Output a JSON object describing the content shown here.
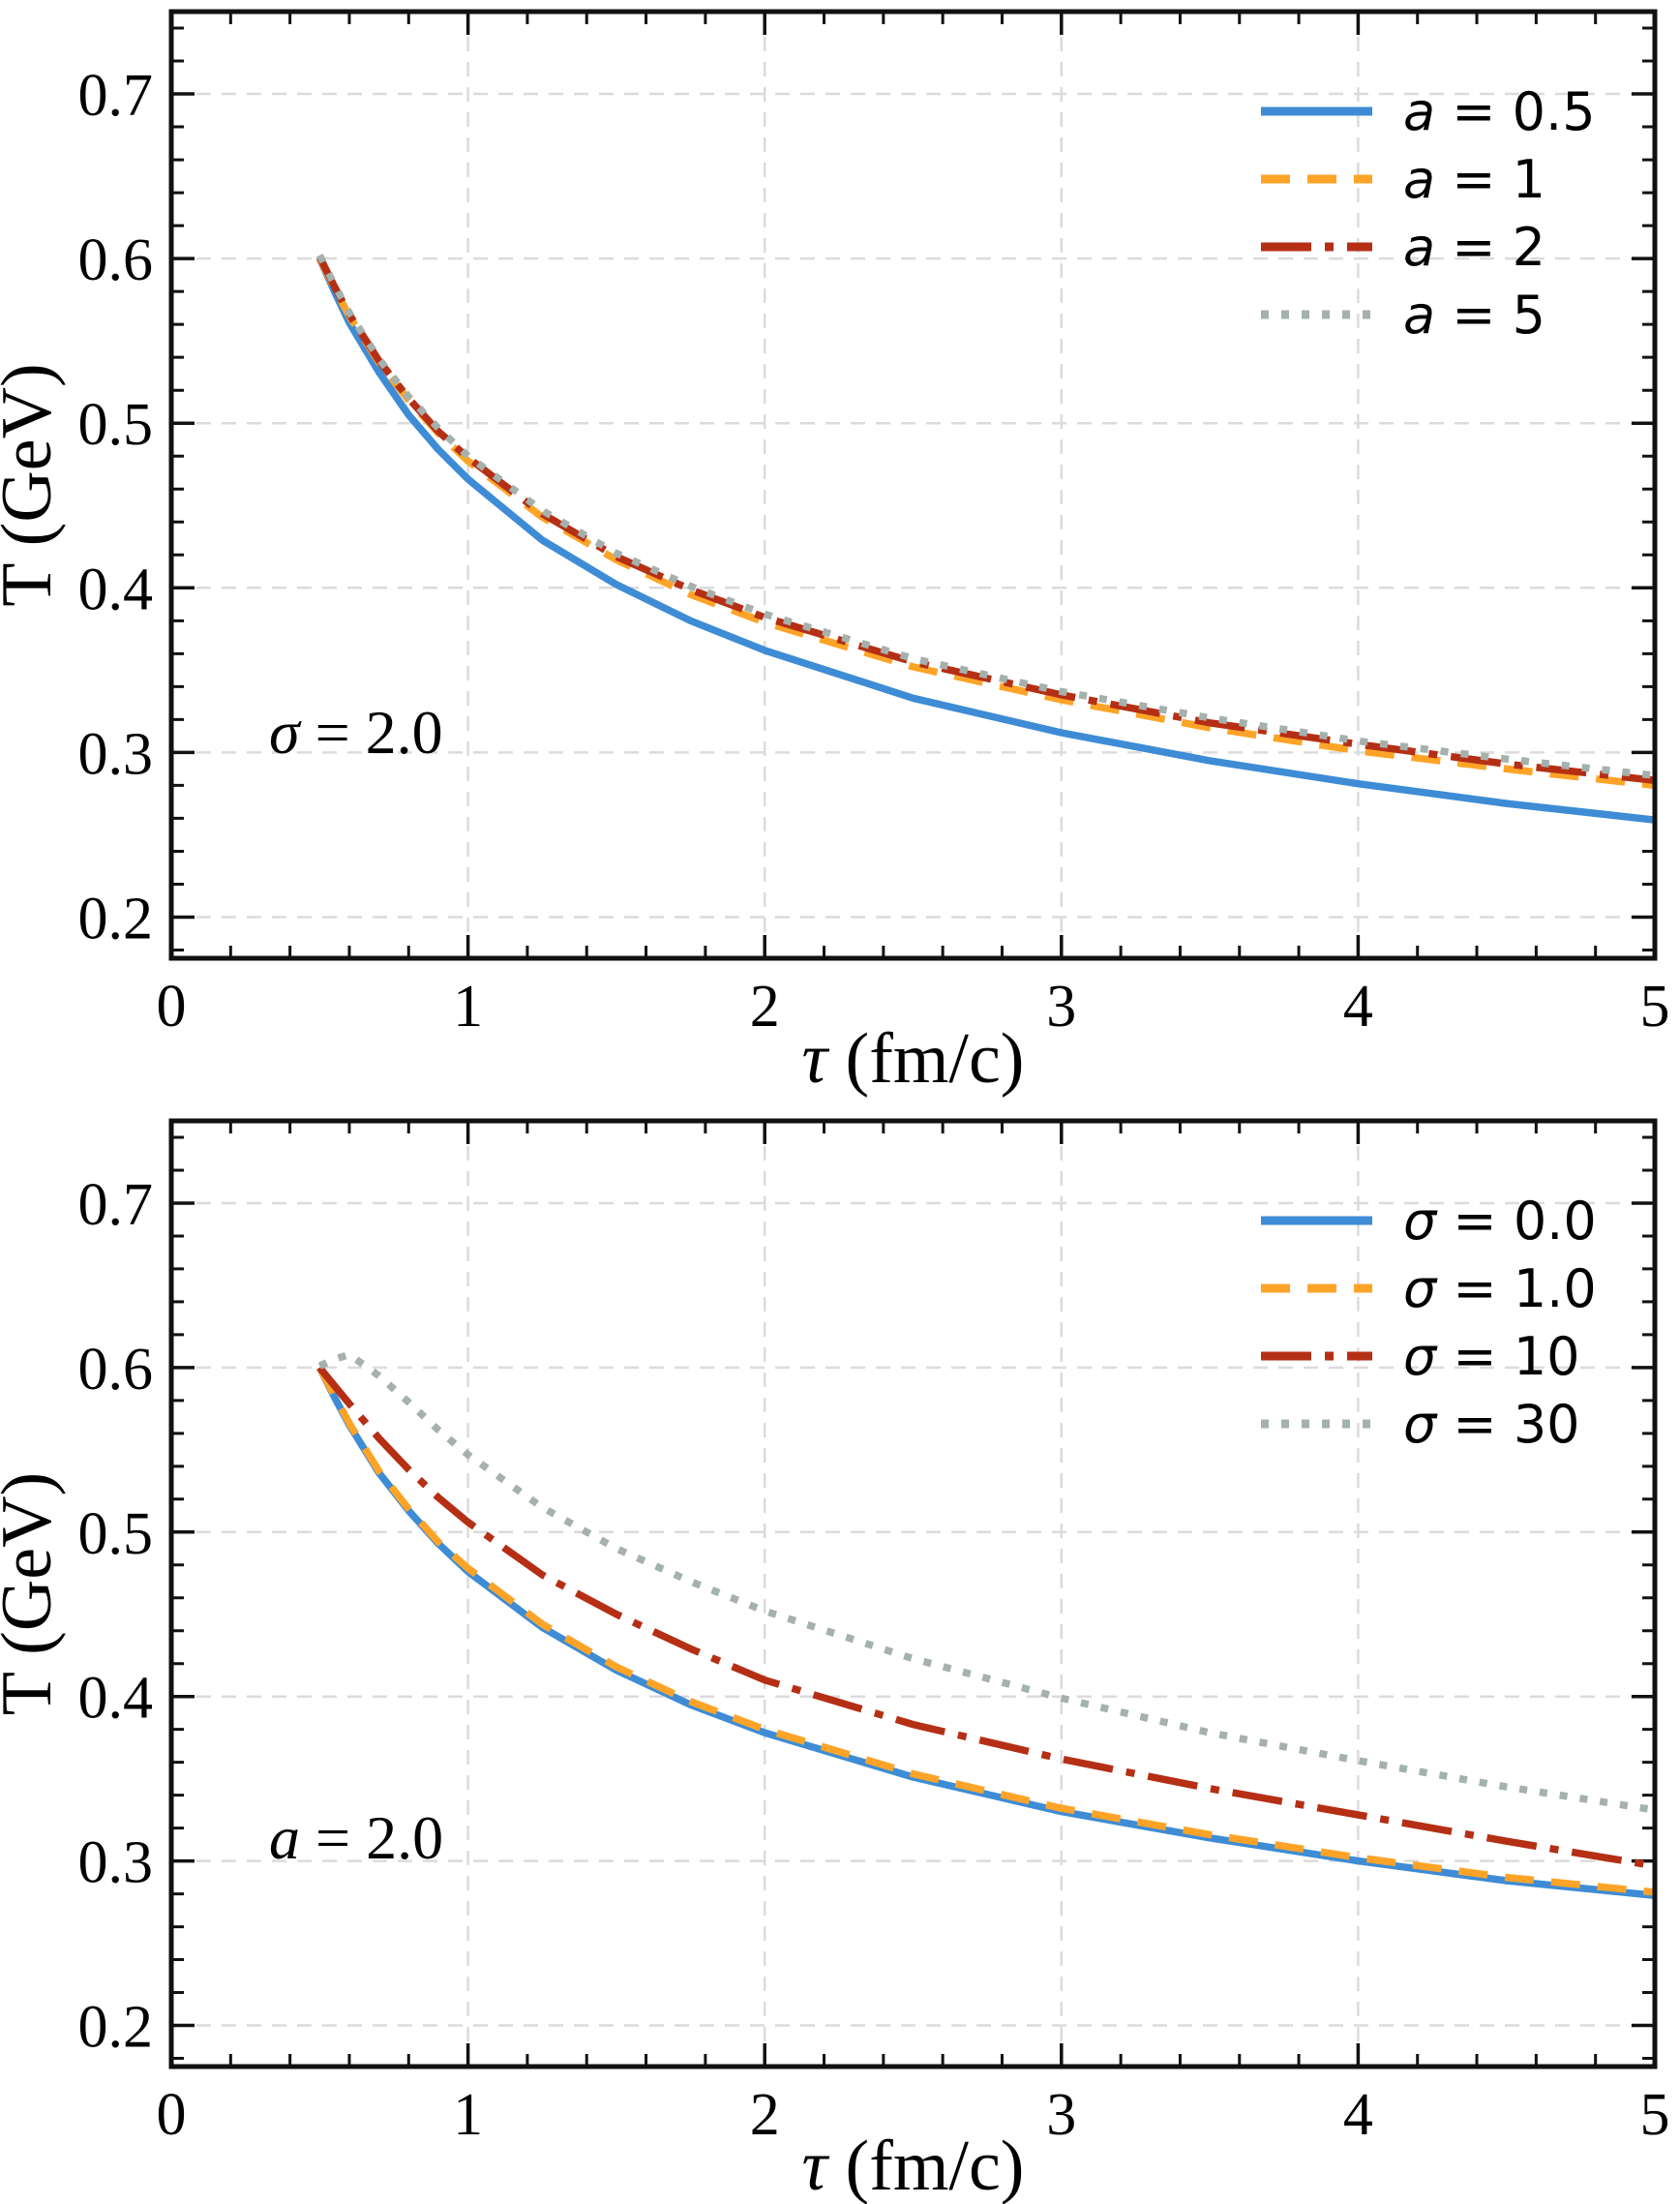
{
  "figure": {
    "background": "#ffffff",
    "sep": " = ",
    "colors": {
      "blue": "#3E8CD5",
      "orange": "#FDA428",
      "red": "#B52F15",
      "gray": "#A4B1AD",
      "grid": "#DBDBDB",
      "axis": "#111111"
    }
  },
  "chart_data": [
    {
      "type": "line",
      "title": "",
      "xlabel": {
        "var": "τ",
        "rest": " (fm/c)"
      },
      "ylabel": "T (GeV)",
      "xlim": [
        0,
        5
      ],
      "ylim": [
        0.175,
        0.75
      ],
      "xticks": [
        "0",
        "1",
        "2",
        "3",
        "4",
        "5"
      ],
      "yticks": [
        "0.2",
        "0.3",
        "0.4",
        "0.5",
        "0.6",
        "0.7"
      ],
      "grid": true,
      "legend_position": "upper right",
      "annotation": {
        "var": "σ",
        "value": "2.0"
      },
      "x": [
        0.5,
        0.55,
        0.6,
        0.7,
        0.8,
        0.9,
        1.0,
        1.25,
        1.5,
        1.75,
        2.0,
        2.5,
        3.0,
        3.5,
        4.0,
        4.5,
        5.0
      ],
      "series": [
        {
          "key": "a-0.5",
          "name": "a = 0.5",
          "var": "a",
          "value": "0.5",
          "color": "#3E8CD5",
          "dash": "solid",
          "y": [
            0.6,
            0.58,
            0.561,
            0.531,
            0.505,
            0.484,
            0.466,
            0.429,
            0.402,
            0.38,
            0.362,
            0.333,
            0.312,
            0.295,
            0.281,
            0.269,
            0.259
          ]
        },
        {
          "key": "a-1",
          "name": "a = 1",
          "var": "a",
          "value": "1",
          "color": "#FDA428",
          "dash": "dashed",
          "y": [
            0.6,
            0.582,
            0.565,
            0.537,
            0.514,
            0.494,
            0.477,
            0.443,
            0.417,
            0.396,
            0.379,
            0.352,
            0.332,
            0.315,
            0.301,
            0.29,
            0.28
          ]
        },
        {
          "key": "a-2",
          "name": "a = 2",
          "var": "a",
          "value": "2",
          "color": "#B52F15",
          "dash": "dashdot",
          "y": [
            0.601,
            0.583,
            0.566,
            0.538,
            0.515,
            0.495,
            0.479,
            0.445,
            0.419,
            0.399,
            0.382,
            0.355,
            0.335,
            0.318,
            0.305,
            0.293,
            0.283
          ]
        },
        {
          "key": "a-5",
          "name": "a = 5",
          "var": "a",
          "value": "5",
          "color": "#A4B1AD",
          "dash": "dotted",
          "y": [
            0.602,
            0.584,
            0.567,
            0.539,
            0.516,
            0.497,
            0.48,
            0.447,
            0.421,
            0.401,
            0.384,
            0.357,
            0.337,
            0.321,
            0.307,
            0.296,
            0.286
          ]
        }
      ]
    },
    {
      "type": "line",
      "title": "",
      "xlabel": {
        "var": "τ",
        "rest": " (fm/c)"
      },
      "ylabel": "T (GeV)",
      "xlim": [
        0,
        5
      ],
      "ylim": [
        0.175,
        0.75
      ],
      "xticks": [
        "0",
        "1",
        "2",
        "3",
        "4",
        "5"
      ],
      "yticks": [
        "0.2",
        "0.3",
        "0.4",
        "0.5",
        "0.6",
        "0.7"
      ],
      "grid": true,
      "legend_position": "upper right",
      "annotation": {
        "var": "a",
        "value": "2.0"
      },
      "x": [
        0.5,
        0.55,
        0.6,
        0.7,
        0.8,
        0.9,
        1.0,
        1.25,
        1.5,
        1.75,
        2.0,
        2.5,
        3.0,
        3.5,
        4.0,
        4.5,
        5.0
      ],
      "series": [
        {
          "key": "sigma-0.0",
          "name": "σ = 0.0",
          "var": "σ",
          "value": "0.0",
          "color": "#3E8CD5",
          "dash": "solid",
          "y": [
            0.6,
            0.582,
            0.565,
            0.536,
            0.513,
            0.493,
            0.476,
            0.442,
            0.416,
            0.395,
            0.378,
            0.351,
            0.33,
            0.314,
            0.3,
            0.288,
            0.279
          ]
        },
        {
          "key": "sigma-1.0",
          "name": "σ = 1.0",
          "var": "σ",
          "value": "1.0",
          "color": "#FDA428",
          "dash": "dashed",
          "y": [
            0.6,
            0.583,
            0.566,
            0.537,
            0.514,
            0.494,
            0.478,
            0.444,
            0.418,
            0.397,
            0.38,
            0.353,
            0.332,
            0.316,
            0.302,
            0.29,
            0.281
          ]
        },
        {
          "key": "sigma-10",
          "name": "σ = 10",
          "var": "σ",
          "value": "10",
          "color": "#B52F15",
          "dash": "dashdot",
          "y": [
            0.6,
            0.589,
            0.578,
            0.557,
            0.538,
            0.521,
            0.506,
            0.474,
            0.45,
            0.429,
            0.41,
            0.383,
            0.362,
            0.344,
            0.328,
            0.312,
            0.297
          ]
        },
        {
          "key": "sigma-30",
          "name": "σ = 30",
          "var": "σ",
          "value": "30",
          "color": "#A4B1AD",
          "dash": "dotted",
          "y": [
            0.601,
            0.605,
            0.608,
            0.595,
            0.579,
            0.562,
            0.547,
            0.515,
            0.49,
            0.47,
            0.452,
            0.423,
            0.399,
            0.378,
            0.361,
            0.345,
            0.331
          ]
        }
      ]
    }
  ]
}
